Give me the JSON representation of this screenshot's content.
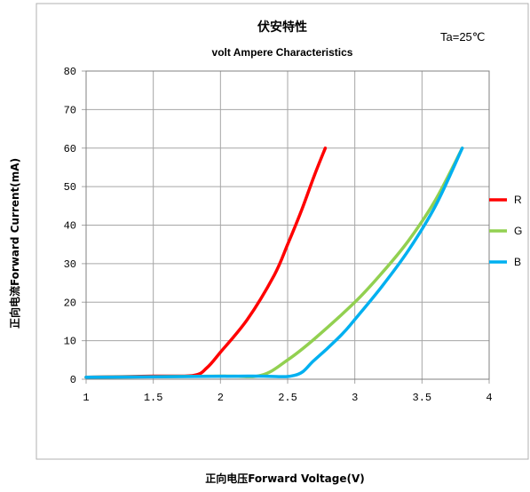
{
  "chart_data": {
    "type": "line",
    "title": "伏安特性",
    "subtitle": "volt Ampere Characteristics",
    "annotation": "Ta=25℃",
    "xlabel": "正向电压Forward Voltage(V)",
    "ylabel": "正向电流Forward Current(mA)",
    "xlim": [
      1,
      4
    ],
    "ylim": [
      0,
      80
    ],
    "x_ticks": [
      "1",
      "1.5",
      "2",
      "2.5",
      "3",
      "3.5",
      "4"
    ],
    "y_ticks": [
      "0",
      "10",
      "20",
      "30",
      "40",
      "50",
      "60",
      "70",
      "80"
    ],
    "grid": true,
    "legend_position": "right",
    "series": [
      {
        "name": "R",
        "color": "#ff0000",
        "points": [
          [
            1.0,
            0.5
          ],
          [
            1.5,
            0.8
          ],
          [
            1.8,
            1.0
          ],
          [
            1.9,
            3.0
          ],
          [
            2.0,
            7.0
          ],
          [
            2.2,
            15.5
          ],
          [
            2.4,
            27.0
          ],
          [
            2.5,
            35.0
          ],
          [
            2.6,
            43.5
          ],
          [
            2.7,
            53.0
          ],
          [
            2.78,
            60.0
          ]
        ]
      },
      {
        "name": "G",
        "color": "#92d050",
        "points": [
          [
            1.0,
            0.5
          ],
          [
            2.0,
            0.8
          ],
          [
            2.3,
            1.0
          ],
          [
            2.5,
            5.0
          ],
          [
            2.7,
            10.5
          ],
          [
            3.0,
            20.0
          ],
          [
            3.2,
            27.5
          ],
          [
            3.4,
            36.0
          ],
          [
            3.6,
            46.5
          ],
          [
            3.8,
            60.0
          ]
        ]
      },
      {
        "name": "B",
        "color": "#00b0f0",
        "points": [
          [
            1.0,
            0.5
          ],
          [
            2.2,
            0.8
          ],
          [
            2.55,
            1.0
          ],
          [
            2.7,
            5.0
          ],
          [
            2.9,
            11.5
          ],
          [
            3.0,
            15.5
          ],
          [
            3.2,
            24.0
          ],
          [
            3.4,
            33.5
          ],
          [
            3.6,
            45.0
          ],
          [
            3.8,
            60.0
          ]
        ]
      }
    ]
  }
}
